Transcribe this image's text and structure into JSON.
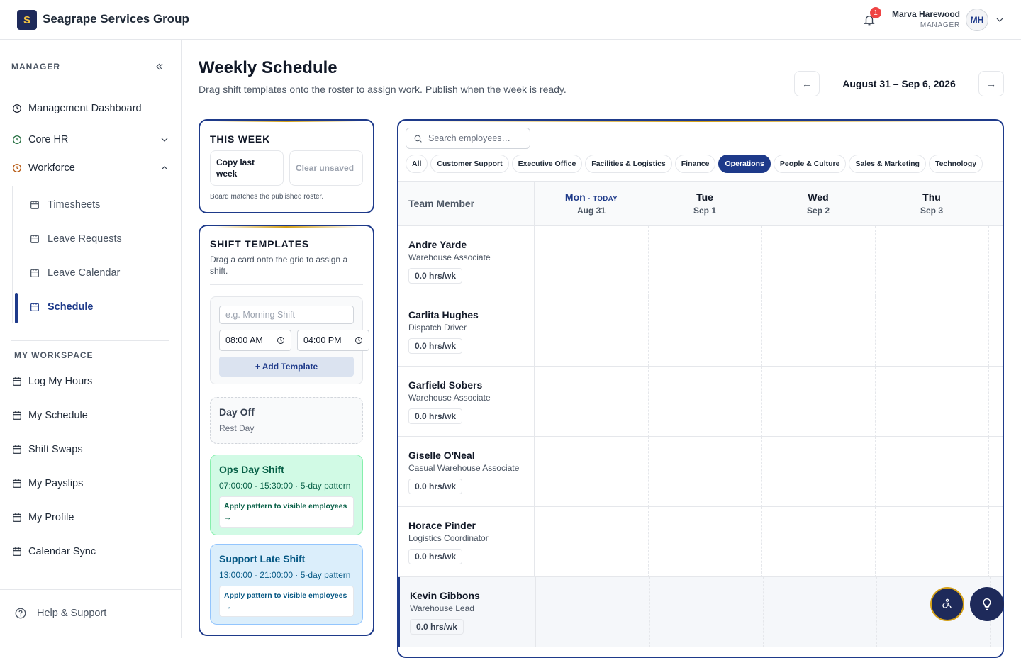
{
  "header": {
    "logo_letter": "S",
    "brand": "Seagrape Services Group",
    "notification_count": 1,
    "user_name": "Marva Harewood",
    "user_role": "MANAGER",
    "user_initials": "MH"
  },
  "sidebar": {
    "section_title": "MANAGER",
    "nav": [
      "Management Dashboard",
      "Core HR",
      "Workforce"
    ],
    "workforce_items": [
      "Timesheets",
      "Leave Requests",
      "Leave Calendar",
      "Schedule"
    ],
    "workspace_title": "MY WORKSPACE",
    "workspace_items": [
      "Log My Hours",
      "My Schedule",
      "Shift Swaps",
      "My Payslips",
      "My Profile",
      "Calendar Sync"
    ],
    "help": "Help & Support"
  },
  "page": {
    "title": "Weekly Schedule",
    "subtitle": "Drag shift templates onto the roster to assign work. Publish when the week is ready.",
    "prev": "←",
    "week_range": "August 31 – Sep 6, 2026",
    "next": "→"
  },
  "this_week": {
    "title": "THIS WEEK",
    "copy": "Copy last week",
    "clear": "Clear unsaved",
    "note": "Board matches the published roster."
  },
  "templates": {
    "title": "SHIFT TEMPLATES",
    "hint": "Drag a card onto the grid to assign a shift.",
    "name_placeholder": "e.g. Morning Shift",
    "start": "08:00 AM",
    "end": "04:00 PM",
    "add": "+ Add Template",
    "cards": [
      {
        "name": "Day Off",
        "detail": "Rest Day"
      },
      {
        "name": "Ops Day Shift",
        "detail": "07:00:00 - 15:30:00 · 5-day pattern",
        "action": "Apply pattern to visible employees →"
      },
      {
        "name": "Support Late Shift",
        "detail": "13:00:00 - 21:00:00 · 5-day pattern",
        "action": "Apply pattern to visible employees →"
      }
    ]
  },
  "roster": {
    "search_placeholder": "Search employees…",
    "filters": [
      "All",
      "Customer Support",
      "Executive Office",
      "Facilities & Logistics",
      "Finance",
      "Operations",
      "People & Culture",
      "Sales & Marketing",
      "Technology"
    ],
    "active_filter": "Operations",
    "member_header": "Team Member",
    "days": [
      {
        "day": "Mon",
        "today": "· TODAY",
        "date": "Aug 31"
      },
      {
        "day": "Tue",
        "date": "Sep 1"
      },
      {
        "day": "Wed",
        "date": "Sep 2"
      },
      {
        "day": "Thu",
        "date": "Sep 3"
      }
    ],
    "employees": [
      {
        "name": "Andre Yarde",
        "role": "Warehouse Associate",
        "hours": "0.0 hrs/wk"
      },
      {
        "name": "Carlita Hughes",
        "role": "Dispatch Driver",
        "hours": "0.0 hrs/wk"
      },
      {
        "name": "Garfield Sobers",
        "role": "Warehouse Associate",
        "hours": "0.0 hrs/wk"
      },
      {
        "name": "Giselle O'Neal",
        "role": "Casual Warehouse Associate",
        "hours": "0.0 hrs/wk"
      },
      {
        "name": "Horace Pinder",
        "role": "Logistics Coordinator",
        "hours": "0.0 hrs/wk"
      },
      {
        "name": "Kevin Gibbons",
        "role": "Warehouse Lead",
        "hours": "0.0 hrs/wk"
      }
    ]
  }
}
